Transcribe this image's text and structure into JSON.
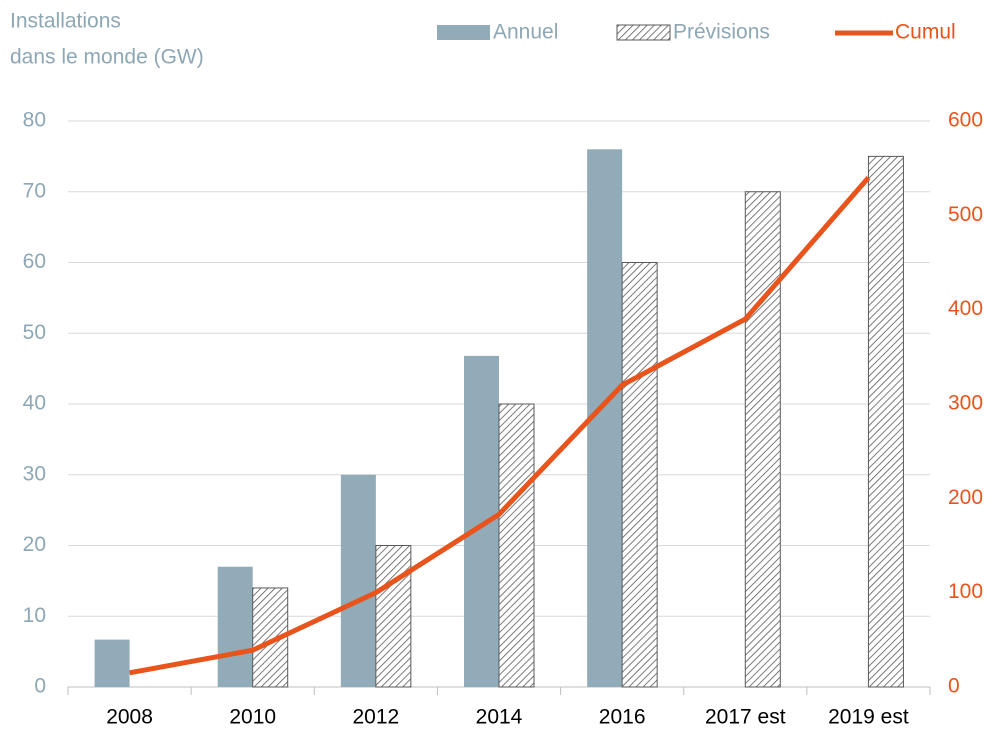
{
  "chart_data": {
    "type": "bar_line",
    "title": [
      "Installations",
      "dans le monde (GW)"
    ],
    "categories": [
      "2008",
      "2010",
      "2012",
      "2014",
      "2016",
      "2017 est",
      "2019 est"
    ],
    "series": [
      {
        "name": "Annuel",
        "type": "bar",
        "color": "#92abb8",
        "values": [
          6.7,
          17,
          30,
          46.8,
          76,
          null,
          null
        ]
      },
      {
        "name": "Prévisions",
        "type": "bar",
        "hatch": true,
        "color": "#595959",
        "values": [
          null,
          14,
          20,
          40,
          60,
          70,
          75
        ]
      },
      {
        "name": "Cumul",
        "type": "line",
        "axis": "y2",
        "color": "#e8541c",
        "values": [
          15,
          39,
          100,
          183,
          320,
          390,
          540
        ]
      }
    ],
    "ylim": [
      0,
      80
    ],
    "yticks": [
      0,
      10,
      20,
      30,
      40,
      50,
      60,
      70,
      80
    ],
    "y2lim": [
      0,
      600
    ],
    "y2ticks": [
      0,
      100,
      200,
      300,
      400,
      500,
      600
    ],
    "grid": true,
    "legend": "top-right"
  }
}
